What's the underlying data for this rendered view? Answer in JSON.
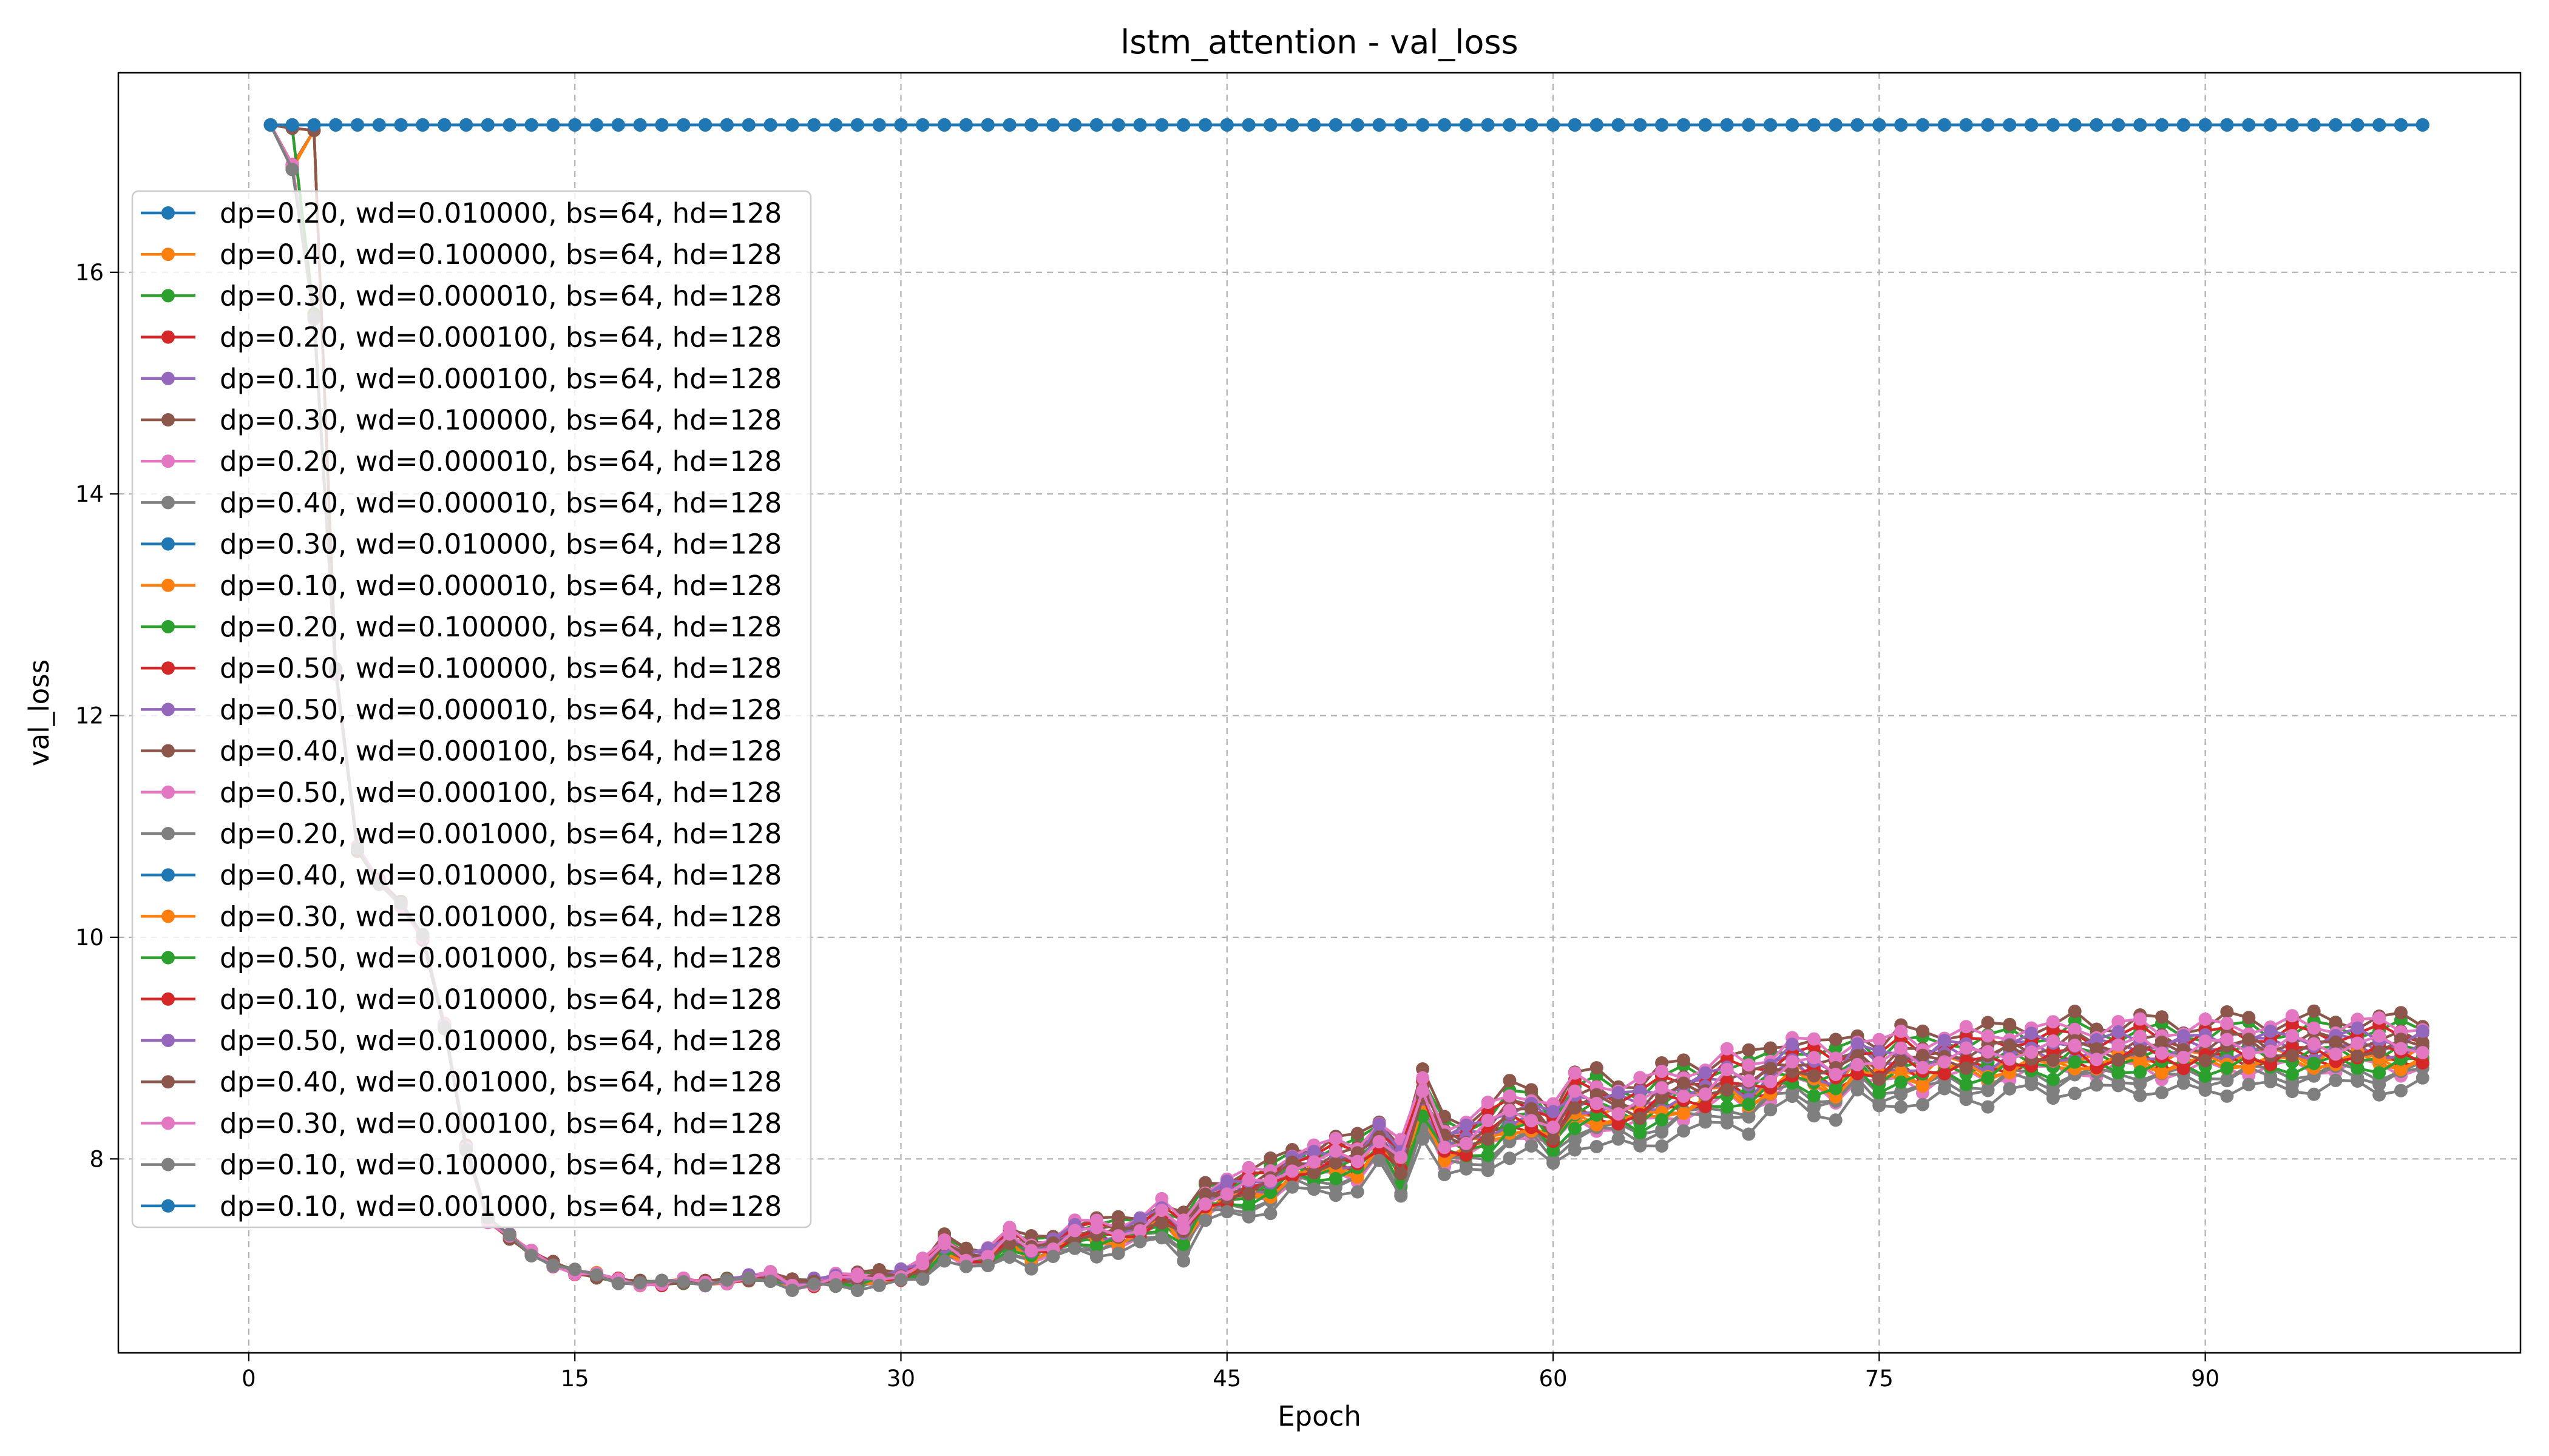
{
  "chart_data": {
    "type": "line",
    "title": "lstm_attention - val_loss",
    "xlabel": "Epoch",
    "ylabel": "val_loss",
    "xlim": [
      -6,
      104.5
    ],
    "ylim": [
      6.25,
      17.8
    ],
    "x_ticks": [
      0,
      15,
      30,
      45,
      60,
      75,
      90
    ],
    "y_ticks": [
      8,
      10,
      12,
      14,
      16
    ],
    "grid": true,
    "legend_position": "upper-left",
    "marker": "circle",
    "x": [
      1,
      2,
      3,
      4,
      5,
      6,
      7,
      8,
      9,
      10,
      11,
      12,
      13,
      14,
      15,
      16,
      17,
      18,
      19,
      20,
      21,
      22,
      23,
      24,
      25,
      26,
      27,
      28,
      29,
      30,
      31,
      32,
      33,
      34,
      35,
      36,
      37,
      38,
      39,
      40,
      41,
      42,
      43,
      44,
      45,
      46,
      47,
      48,
      49,
      50,
      51,
      52,
      53,
      54,
      55,
      56,
      57,
      58,
      59,
      60,
      61,
      62,
      63,
      64,
      65,
      66,
      67,
      68,
      69,
      70,
      71,
      72,
      73,
      74,
      75,
      76,
      77,
      78,
      79,
      80,
      81,
      82,
      83,
      84,
      85,
      86,
      87,
      88,
      89,
      90,
      91,
      92,
      93,
      94,
      95,
      96,
      97,
      98,
      99,
      100
    ],
    "flat_value": 17.33,
    "flat_series_indices": [
      0,
      8,
      16,
      24
    ],
    "trained_base": [
      17.33,
      16.95,
      15.6,
      12.4,
      10.8,
      10.5,
      10.3,
      10.0,
      9.2,
      8.1,
      7.45,
      7.3,
      7.15,
      7.05,
      6.98,
      6.95,
      6.9,
      6.88,
      6.88,
      6.9,
      6.88,
      6.9,
      6.92,
      6.94,
      6.86,
      6.88,
      6.9,
      6.9,
      6.92,
      6.94,
      7.0,
      7.2,
      7.1,
      7.1,
      7.25,
      7.15,
      7.2,
      7.3,
      7.3,
      7.3,
      7.35,
      7.45,
      7.3,
      7.6,
      7.65,
      7.7,
      7.75,
      7.9,
      7.9,
      7.95,
      7.95,
      8.15,
      7.9,
      8.5,
      8.1,
      8.1,
      8.2,
      8.35,
      8.35,
      8.2,
      8.45,
      8.45,
      8.4,
      8.4,
      8.5,
      8.55,
      8.55,
      8.65,
      8.6,
      8.7,
      8.8,
      8.75,
      8.7,
      8.85,
      8.75,
      8.85,
      8.8,
      8.85,
      8.85,
      8.85,
      8.9,
      8.9,
      8.9,
      8.95,
      8.9,
      8.92,
      8.95,
      8.92,
      8.9,
      8.92,
      8.95,
      8.95,
      8.92,
      8.95,
      8.95,
      8.95,
      8.95,
      8.95,
      8.95,
      8.95
    ],
    "trained_offsets": [
      0,
      0.22,
      -0.04,
      0.1,
      0.3,
      -0.12,
      -0.2,
      -0.07,
      0,
      0.18,
      0.02,
      0.12,
      0.26,
      -0.16,
      -0.06,
      -0.1,
      0,
      0.15,
      0.05,
      0.08,
      -0.3,
      -0.02,
      -0.18,
      -0.09,
      0
    ],
    "series": [
      {
        "name": "dp=0.20, wd=0.010000, bs=64, hd=128",
        "color": "#1f77b4"
      },
      {
        "name": "dp=0.40, wd=0.100000, bs=64, hd=128",
        "color": "#ff7f0e"
      },
      {
        "name": "dp=0.30, wd=0.000010, bs=64, hd=128",
        "color": "#2ca02c"
      },
      {
        "name": "dp=0.20, wd=0.000100, bs=64, hd=128",
        "color": "#d62728"
      },
      {
        "name": "dp=0.10, wd=0.000100, bs=64, hd=128",
        "color": "#9467bd"
      },
      {
        "name": "dp=0.30, wd=0.100000, bs=64, hd=128",
        "color": "#8c564b"
      },
      {
        "name": "dp=0.20, wd=0.000010, bs=64, hd=128",
        "color": "#e377c2"
      },
      {
        "name": "dp=0.40, wd=0.000010, bs=64, hd=128",
        "color": "#7f7f7f"
      },
      {
        "name": "dp=0.30, wd=0.010000, bs=64, hd=128",
        "color": "#1f77b4"
      },
      {
        "name": "dp=0.10, wd=0.000010, bs=64, hd=128",
        "color": "#ff7f0e"
      },
      {
        "name": "dp=0.20, wd=0.100000, bs=64, hd=128",
        "color": "#2ca02c"
      },
      {
        "name": "dp=0.50, wd=0.100000, bs=64, hd=128",
        "color": "#d62728"
      },
      {
        "name": "dp=0.50, wd=0.000010, bs=64, hd=128",
        "color": "#9467bd"
      },
      {
        "name": "dp=0.40, wd=0.000100, bs=64, hd=128",
        "color": "#8c564b"
      },
      {
        "name": "dp=0.50, wd=0.000100, bs=64, hd=128",
        "color": "#e377c2"
      },
      {
        "name": "dp=0.20, wd=0.001000, bs=64, hd=128",
        "color": "#7f7f7f"
      },
      {
        "name": "dp=0.40, wd=0.010000, bs=64, hd=128",
        "color": "#1f77b4"
      },
      {
        "name": "dp=0.30, wd=0.001000, bs=64, hd=128",
        "color": "#ff7f0e"
      },
      {
        "name": "dp=0.50, wd=0.001000, bs=64, hd=128",
        "color": "#2ca02c"
      },
      {
        "name": "dp=0.10, wd=0.010000, bs=64, hd=128",
        "color": "#d62728"
      },
      {
        "name": "dp=0.50, wd=0.010000, bs=64, hd=128",
        "color": "#9467bd"
      },
      {
        "name": "dp=0.40, wd=0.001000, bs=64, hd=128",
        "color": "#8c564b"
      },
      {
        "name": "dp=0.30, wd=0.000100, bs=64, hd=128",
        "color": "#e377c2"
      },
      {
        "name": "dp=0.10, wd=0.100000, bs=64, hd=128",
        "color": "#7f7f7f"
      },
      {
        "name": "dp=0.10, wd=0.001000, bs=64, hd=128",
        "color": "#1f77b4"
      }
    ]
  }
}
